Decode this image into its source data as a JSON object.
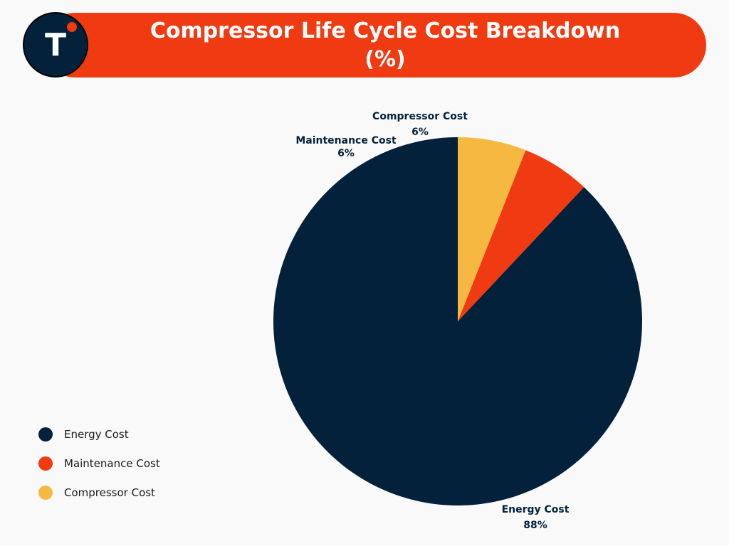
{
  "header": {
    "title_line1": "Compressor Life Cycle Cost Breakdown",
    "title_line2": "(%)",
    "logo_letter": "T",
    "bar_color": "#ef3a12",
    "logo_color": "#03213a",
    "logo_dot_color": "#ef3a12"
  },
  "chart_data": {
    "type": "pie",
    "title": "Compressor Life Cycle Cost Breakdown (%)",
    "legend_position": "bottom-left",
    "slices": [
      {
        "label": "Energy Cost",
        "value": 88,
        "value_label": "88%",
        "color": "#03213a"
      },
      {
        "label": "Maintenance Cost",
        "value": 6,
        "value_label": "6%",
        "color": "#ef3a12"
      },
      {
        "label": "Compressor Cost",
        "value": 6,
        "value_label": "6%",
        "color": "#f5b942"
      }
    ]
  }
}
